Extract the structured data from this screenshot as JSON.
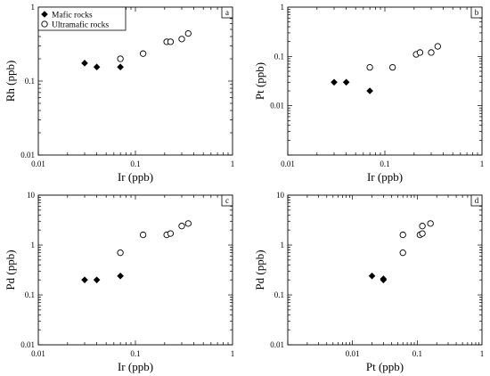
{
  "chart_data": [
    {
      "type": "scatter",
      "panel_label": "a",
      "xlabel": "Ir (ppb)",
      "ylabel": "Rh (ppb)",
      "x_scale": "log",
      "y_scale": "log",
      "xlim": [
        0.01,
        1
      ],
      "ylim": [
        0.01,
        1
      ],
      "x_ticks": [
        "0.01",
        "0.1",
        "1"
      ],
      "y_ticks": [
        "0.01",
        "0.1",
        "1"
      ],
      "legend": {
        "position": "top-left",
        "entries": [
          {
            "label": "Mafic rocks",
            "marker": "filled-diamond"
          },
          {
            "label": "Ultramafic rocks",
            "marker": "open-circle"
          }
        ]
      },
      "series": [
        {
          "name": "Mafic rocks",
          "marker": "filled-diamond",
          "points": [
            [
              0.03,
              0.175
            ],
            [
              0.04,
              0.155
            ],
            [
              0.07,
              0.155
            ]
          ]
        },
        {
          "name": "Ultramafic rocks",
          "marker": "open-circle",
          "points": [
            [
              0.07,
              0.2
            ],
            [
              0.12,
              0.235
            ],
            [
              0.21,
              0.34
            ],
            [
              0.23,
              0.34
            ],
            [
              0.3,
              0.37
            ],
            [
              0.35,
              0.44
            ]
          ]
        }
      ]
    },
    {
      "type": "scatter",
      "panel_label": "b",
      "xlabel": "Ir (ppb)",
      "ylabel": "Pt (ppb)",
      "x_scale": "log",
      "y_scale": "log",
      "xlim": [
        0.01,
        1
      ],
      "ylim": [
        0.001,
        1
      ],
      "x_ticks": [
        "0.01",
        "0.1",
        "1"
      ],
      "y_ticks": [
        "0.01",
        "0.1",
        "1"
      ],
      "series": [
        {
          "name": "Mafic rocks",
          "marker": "filled-diamond",
          "points": [
            [
              0.03,
              0.03
            ],
            [
              0.04,
              0.03
            ],
            [
              0.07,
              0.02
            ]
          ]
        },
        {
          "name": "Ultramafic rocks",
          "marker": "open-circle",
          "points": [
            [
              0.07,
              0.06
            ],
            [
              0.12,
              0.06
            ],
            [
              0.21,
              0.11
            ],
            [
              0.23,
              0.12
            ],
            [
              0.3,
              0.12
            ],
            [
              0.35,
              0.16
            ]
          ]
        }
      ]
    },
    {
      "type": "scatter",
      "panel_label": "c",
      "xlabel": "Ir (ppb)",
      "ylabel": "Pd (ppb)",
      "x_scale": "log",
      "y_scale": "log",
      "xlim": [
        0.01,
        1
      ],
      "ylim": [
        0.01,
        10
      ],
      "x_ticks": [
        "0.01",
        "0.1",
        "1"
      ],
      "y_ticks": [
        "0.01",
        "0.1",
        "1",
        "10"
      ],
      "series": [
        {
          "name": "Mafic rocks",
          "marker": "filled-diamond",
          "points": [
            [
              0.03,
              0.2
            ],
            [
              0.04,
              0.2
            ],
            [
              0.07,
              0.24
            ]
          ]
        },
        {
          "name": "Ultramafic rocks",
          "marker": "open-circle",
          "points": [
            [
              0.07,
              0.7
            ],
            [
              0.12,
              1.6
            ],
            [
              0.21,
              1.6
            ],
            [
              0.23,
              1.7
            ],
            [
              0.3,
              2.4
            ],
            [
              0.35,
              2.7
            ]
          ]
        }
      ]
    },
    {
      "type": "scatter",
      "panel_label": "d",
      "xlabel": "Pt (ppb)",
      "ylabel": "Pd (ppb)",
      "x_scale": "log",
      "y_scale": "log",
      "xlim": [
        0.001,
        1
      ],
      "ylim": [
        0.01,
        10
      ],
      "x_ticks": [
        "0.01",
        "0.1",
        "1"
      ],
      "y_ticks": [
        "0.01",
        "0.1",
        "1",
        "10"
      ],
      "series": [
        {
          "name": "Mafic rocks",
          "marker": "filled-diamond",
          "points": [
            [
              0.02,
              0.24
            ],
            [
              0.03,
              0.2
            ],
            [
              0.03,
              0.21
            ]
          ]
        },
        {
          "name": "Ultramafic rocks",
          "marker": "open-circle",
          "points": [
            [
              0.06,
              1.6
            ],
            [
              0.06,
              0.7
            ],
            [
              0.11,
              1.6
            ],
            [
              0.12,
              1.7
            ],
            [
              0.12,
              2.4
            ],
            [
              0.16,
              2.7
            ]
          ]
        }
      ]
    }
  ]
}
